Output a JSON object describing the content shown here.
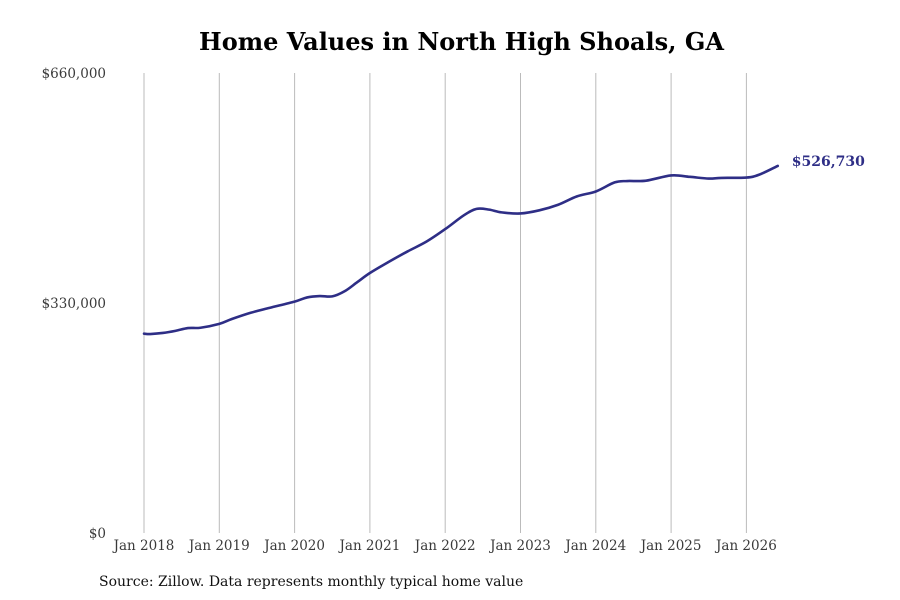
{
  "chart_data": {
    "type": "line",
    "title": "Home Values in North High Shoals, GA",
    "source": "Source: Zillow. Data represents monthly typical home value",
    "xlabel": "",
    "ylabel": "",
    "ylim": [
      0,
      660000
    ],
    "y_ticks": [
      {
        "value": 0,
        "label": "$0"
      },
      {
        "value": 330000,
        "label": "$330,000"
      },
      {
        "value": 660000,
        "label": "$660,000"
      }
    ],
    "x_ticks": [
      {
        "date": "2018-01",
        "label": "Jan 2018"
      },
      {
        "date": "2019-01",
        "label": "Jan 2019"
      },
      {
        "date": "2020-01",
        "label": "Jan 2020"
      },
      {
        "date": "2021-01",
        "label": "Jan 2021"
      },
      {
        "date": "2022-01",
        "label": "Jan 2022"
      },
      {
        "date": "2023-01",
        "label": "Jan 2023"
      },
      {
        "date": "2024-01",
        "label": "Jan 2024"
      },
      {
        "date": "2025-01",
        "label": "Jan 2025"
      },
      {
        "date": "2026-01",
        "label": "Jan 2026"
      }
    ],
    "grid": "vertical",
    "line_color": "#2e2e86",
    "grid_color": "#bbbbbb",
    "end_label": "$526,730",
    "series": [
      {
        "points": [
          {
            "x": "2018-01",
            "y": 286000
          },
          {
            "x": "2018-02",
            "y": 285500
          },
          {
            "x": "2018-04",
            "y": 287000
          },
          {
            "x": "2018-06",
            "y": 290000
          },
          {
            "x": "2018-08",
            "y": 294000
          },
          {
            "x": "2018-10",
            "y": 294500
          },
          {
            "x": "2019-01",
            "y": 300000
          },
          {
            "x": "2019-03",
            "y": 307000
          },
          {
            "x": "2019-06",
            "y": 316000
          },
          {
            "x": "2019-09",
            "y": 323000
          },
          {
            "x": "2020-01",
            "y": 332000
          },
          {
            "x": "2020-03",
            "y": 338000
          },
          {
            "x": "2020-05",
            "y": 340000
          },
          {
            "x": "2020-07",
            "y": 339500
          },
          {
            "x": "2020-09",
            "y": 347000
          },
          {
            "x": "2020-11",
            "y": 360000
          },
          {
            "x": "2021-01",
            "y": 373000
          },
          {
            "x": "2021-04",
            "y": 389000
          },
          {
            "x": "2021-07",
            "y": 404000
          },
          {
            "x": "2021-10",
            "y": 418000
          },
          {
            "x": "2022-01",
            "y": 436000
          },
          {
            "x": "2022-04",
            "y": 456000
          },
          {
            "x": "2022-06",
            "y": 465000
          },
          {
            "x": "2022-08",
            "y": 464000
          },
          {
            "x": "2022-10",
            "y": 460000
          },
          {
            "x": "2023-01",
            "y": 458500
          },
          {
            "x": "2023-04",
            "y": 463000
          },
          {
            "x": "2023-07",
            "y": 471000
          },
          {
            "x": "2023-10",
            "y": 483000
          },
          {
            "x": "2024-01",
            "y": 490000
          },
          {
            "x": "2024-04",
            "y": 503000
          },
          {
            "x": "2024-06",
            "y": 505000
          },
          {
            "x": "2024-09",
            "y": 505500
          },
          {
            "x": "2025-01",
            "y": 513000
          },
          {
            "x": "2025-04",
            "y": 511000
          },
          {
            "x": "2025-07",
            "y": 508500
          },
          {
            "x": "2025-09",
            "y": 509500
          },
          {
            "x": "2026-01",
            "y": 510000
          },
          {
            "x": "2026-03",
            "y": 514000
          },
          {
            "x": "2026-06",
            "y": 526730
          }
        ]
      }
    ]
  }
}
